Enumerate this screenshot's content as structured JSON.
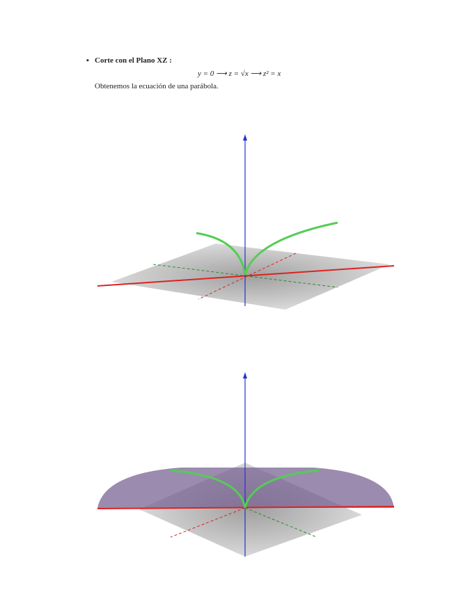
{
  "section": {
    "title": "Corte con el Plano XZ :",
    "equation": "y = 0 ⟶ z = √x ⟶ z² = x",
    "text": "Obtenemos la ecuación de una parábola."
  }
}
